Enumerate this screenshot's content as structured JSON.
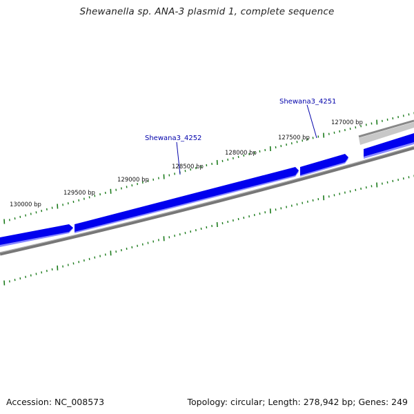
{
  "title": "Shewanella sp. ANA-3 plasmid 1, complete sequence",
  "accession_label": "Accession: NC_008573",
  "summary_label": "Topology: circular; Length: 278,942 bp; Genes: 249",
  "ruler": {
    "tick_labels": [
      "130000 bp",
      "129500 bp",
      "129000 bp",
      "128500 bp",
      "128000 bp",
      "127500 bp",
      "127000 bp"
    ],
    "tick_color": "#1a7a1a"
  },
  "genes": [
    {
      "label": "Shewana3_4252",
      "strand": "+",
      "color": "#0000ee"
    },
    {
      "label": "Shewana3_4251",
      "strand": "+",
      "color": "#0000ee"
    }
  ],
  "colors": {
    "gene_blue": "#0000ee",
    "gene_shadow": "#8888ff",
    "backbone_grey": "#777777",
    "label_blue": "#0000aa"
  }
}
